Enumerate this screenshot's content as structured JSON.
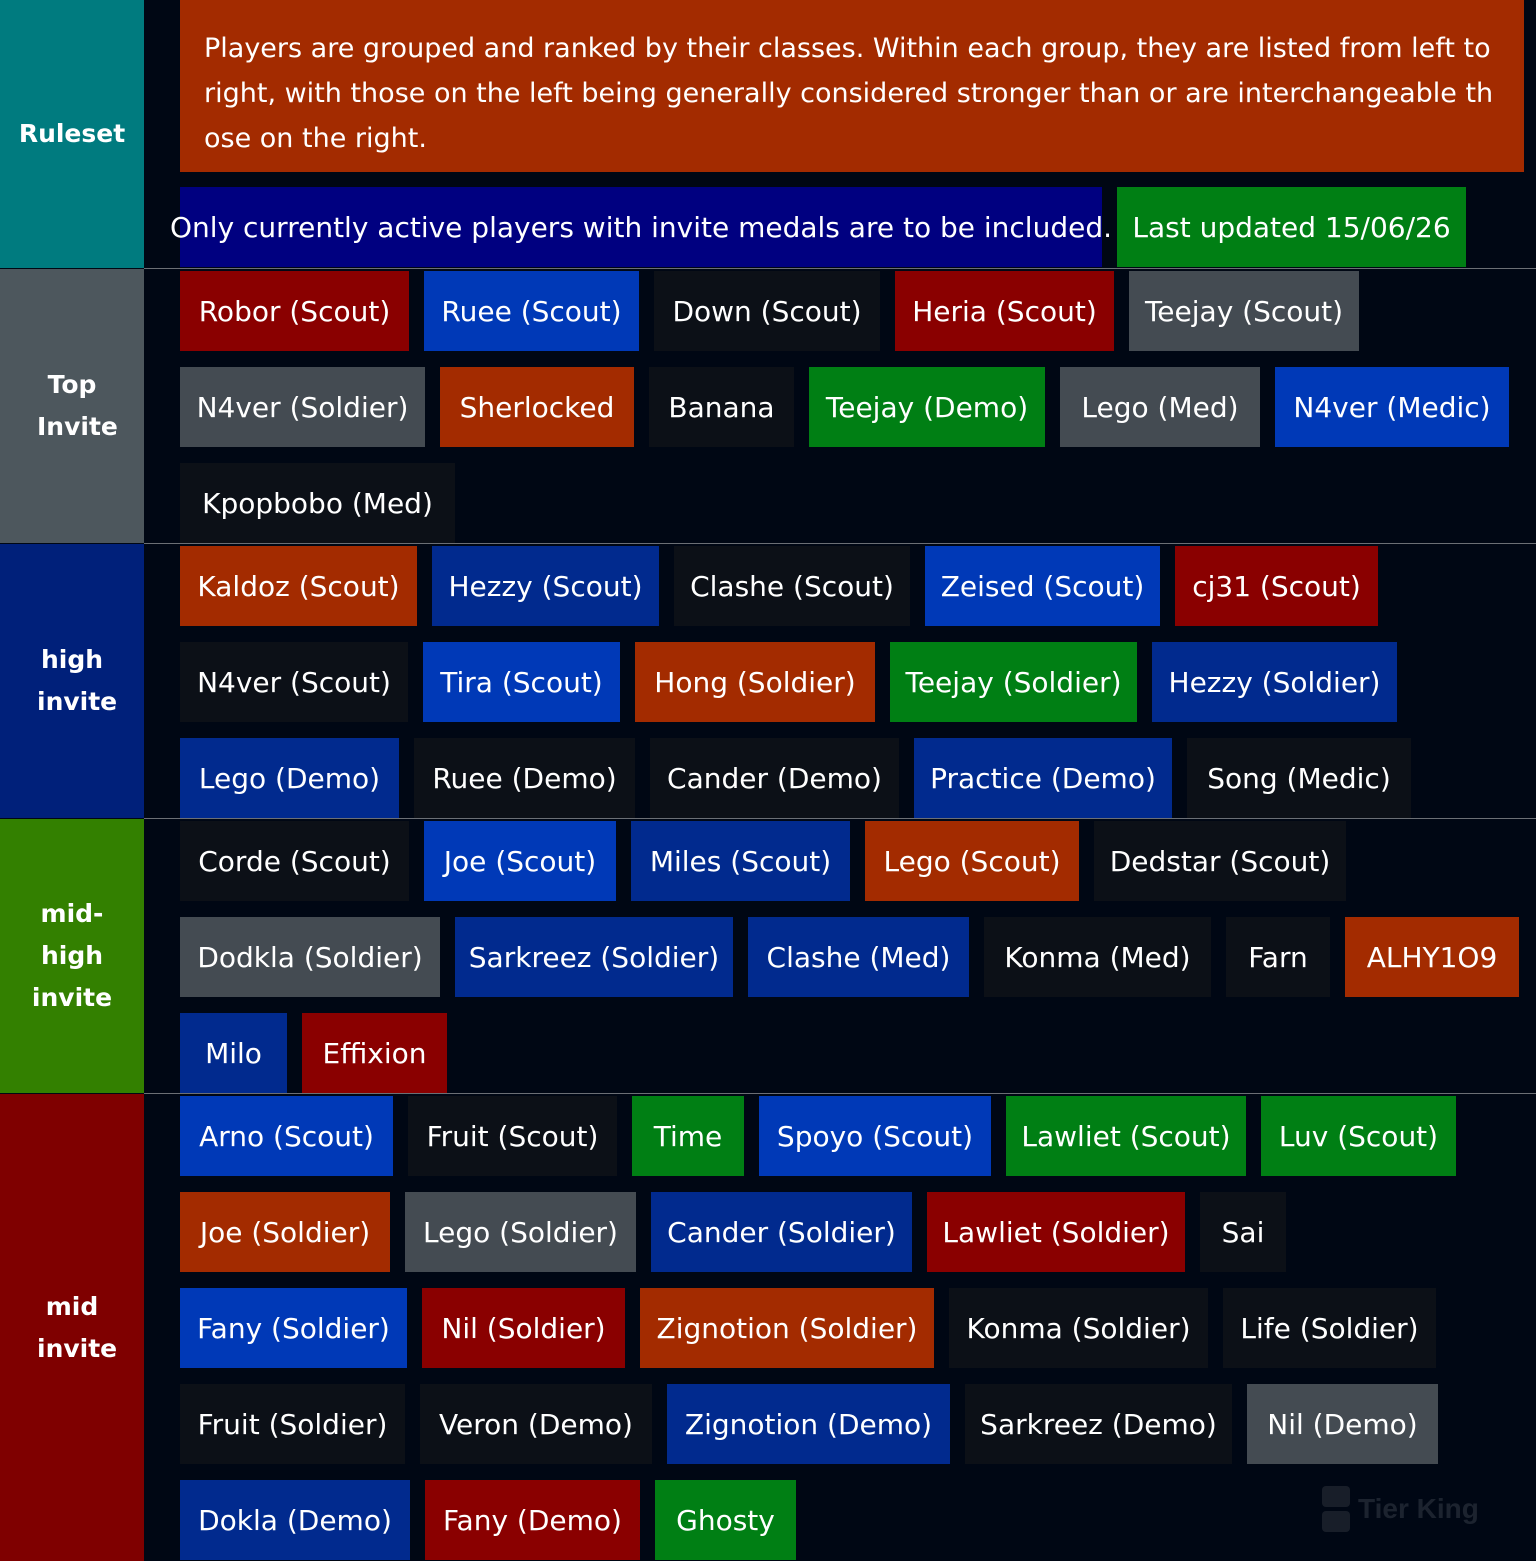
{
  "colors": {
    "background": "#000714",
    "rust": "#a32b00",
    "navy": "#000080",
    "green": "#007f14",
    "maroon": "#8a0000",
    "blue": "#0039b7",
    "darkblue": "#012a8e",
    "black": "#0c1017",
    "gray": "#444b52"
  },
  "tiers": [
    {
      "label": "Ruleset",
      "color": "#007b7f",
      "ruleset": {
        "description": "Players are grouped and ranked by their classes. Within each group, they are listed from left to right, with those on the left being generally considered stronger than or are interchangeable those on the right.",
        "note": "Only currently active players with invite medals are to be included.",
        "updated": "Last updated 15/06/26"
      }
    },
    {
      "label": "Top Invite",
      "color": "#4d575d",
      "items": [
        {
          "text": "Robor (Scout)",
          "color": "#8a0000"
        },
        {
          "text": "Ruee (Scout)",
          "color": "#0039b7"
        },
        {
          "text": "Down (Scout)",
          "color": "#0c1017"
        },
        {
          "text": "Heria (Scout)",
          "color": "#8a0000"
        },
        {
          "text": "Teejay (Scout)",
          "color": "#444b52"
        },
        {
          "text": "N4ver (Soldier)",
          "color": "#444b52"
        },
        {
          "text": "Sherlocked",
          "color": "#a32b00"
        },
        {
          "text": "Banana",
          "color": "#0c1017"
        },
        {
          "text": "Teejay (Demo)",
          "color": "#007f14"
        },
        {
          "text": "Lego (Med)",
          "color": "#444b52"
        },
        {
          "text": "N4ver (Medic)",
          "color": "#0039b7"
        },
        {
          "text": "Kpopbobo (Med)",
          "color": "#0c1017"
        }
      ]
    },
    {
      "label": "high invite",
      "color": "#00207a",
      "items": [
        {
          "text": "Kaldoz (Scout)",
          "color": "#a32b00"
        },
        {
          "text": "Hezzy (Scout)",
          "color": "#012a8e"
        },
        {
          "text": "Clashe (Scout)",
          "color": "#0c1017"
        },
        {
          "text": "Zeised (Scout)",
          "color": "#0039b7"
        },
        {
          "text": "cj31 (Scout)",
          "color": "#8a0000"
        },
        {
          "text": "N4ver (Scout)",
          "color": "#0c1017"
        },
        {
          "text": "Tira (Scout)",
          "color": "#0039b7"
        },
        {
          "text": "Hong (Soldier)",
          "color": "#a32b00"
        },
        {
          "text": "Teejay (Soldier)",
          "color": "#007f14"
        },
        {
          "text": "Hezzy (Soldier)",
          "color": "#012a8e"
        },
        {
          "text": "Lego (Demo)",
          "color": "#012a8e"
        },
        {
          "text": "Ruee (Demo)",
          "color": "#0c1017"
        },
        {
          "text": "Cander (Demo)",
          "color": "#0c1017"
        },
        {
          "text": "Practice (Demo)",
          "color": "#012a8e"
        },
        {
          "text": "Song (Medic)",
          "color": "#0c1017"
        }
      ]
    },
    {
      "label": "mid-high invite",
      "color": "#338000",
      "items": [
        {
          "text": "Corde (Scout)",
          "color": "#0c1017"
        },
        {
          "text": "Joe (Scout)",
          "color": "#0039b7"
        },
        {
          "text": "Miles (Scout)",
          "color": "#012a8e"
        },
        {
          "text": "Lego (Scout)",
          "color": "#a32b00"
        },
        {
          "text": "Dedstar (Scout)",
          "color": "#0c1017"
        },
        {
          "text": "Dodkla (Soldier)",
          "color": "#444b52"
        },
        {
          "text": "Sarkreez (Soldier)",
          "color": "#012a8e"
        },
        {
          "text": "Clashe (Med)",
          "color": "#012a8e"
        },
        {
          "text": "Konma (Med)",
          "color": "#0c1017"
        },
        {
          "text": "Farn",
          "color": "#0c1017"
        },
        {
          "text": "ALHY1O9",
          "color": "#a32b00"
        },
        {
          "text": "Milo",
          "color": "#012a8e"
        },
        {
          "text": "Effixion",
          "color": "#8a0000"
        }
      ]
    },
    {
      "label": "mid invite",
      "color": "#7f0000",
      "items": [
        {
          "text": "Arno (Scout)",
          "color": "#0039b7"
        },
        {
          "text": "Fruit (Scout)",
          "color": "#0c1017"
        },
        {
          "text": "Time",
          "color": "#007f14"
        },
        {
          "text": "Spoyo (Scout)",
          "color": "#0039b7"
        },
        {
          "text": "Lawliet (Scout)",
          "color": "#007f14"
        },
        {
          "text": "Luv (Scout)",
          "color": "#007f14"
        },
        {
          "text": "Joe (Soldier)",
          "color": "#a32b00"
        },
        {
          "text": "Lego (Soldier)",
          "color": "#444b52"
        },
        {
          "text": "Cander (Soldier)",
          "color": "#012a8e"
        },
        {
          "text": "Lawliet (Soldier)",
          "color": "#8a0000"
        },
        {
          "text": "Sai",
          "color": "#0c1017"
        },
        {
          "text": "Fany (Soldier)",
          "color": "#0039b7"
        },
        {
          "text": "Nil (Soldier)",
          "color": "#8a0000"
        },
        {
          "text": "Zignotion (Soldier)",
          "color": "#a32b00"
        },
        {
          "text": "Konma (Soldier)",
          "color": "#0c1017"
        },
        {
          "text": "Life (Soldier)",
          "color": "#0c1017"
        },
        {
          "text": "Fruit (Soldier)",
          "color": "#0c1017"
        },
        {
          "text": "Veron (Demo)",
          "color": "#0c1017"
        },
        {
          "text": "Zignotion (Demo)",
          "color": "#012a8e"
        },
        {
          "text": "Sarkreez (Demo)",
          "color": "#0c1017"
        },
        {
          "text": "Nil (Demo)",
          "color": "#444b52"
        },
        {
          "text": "Dokla (Demo)",
          "color": "#012a8e"
        },
        {
          "text": "Fany (Demo)",
          "color": "#8a0000"
        },
        {
          "text": "Ghosty",
          "color": "#007f14"
        }
      ]
    }
  ],
  "watermark": {
    "text": "Tier King",
    "icon": "tier-king-logo-icon"
  }
}
